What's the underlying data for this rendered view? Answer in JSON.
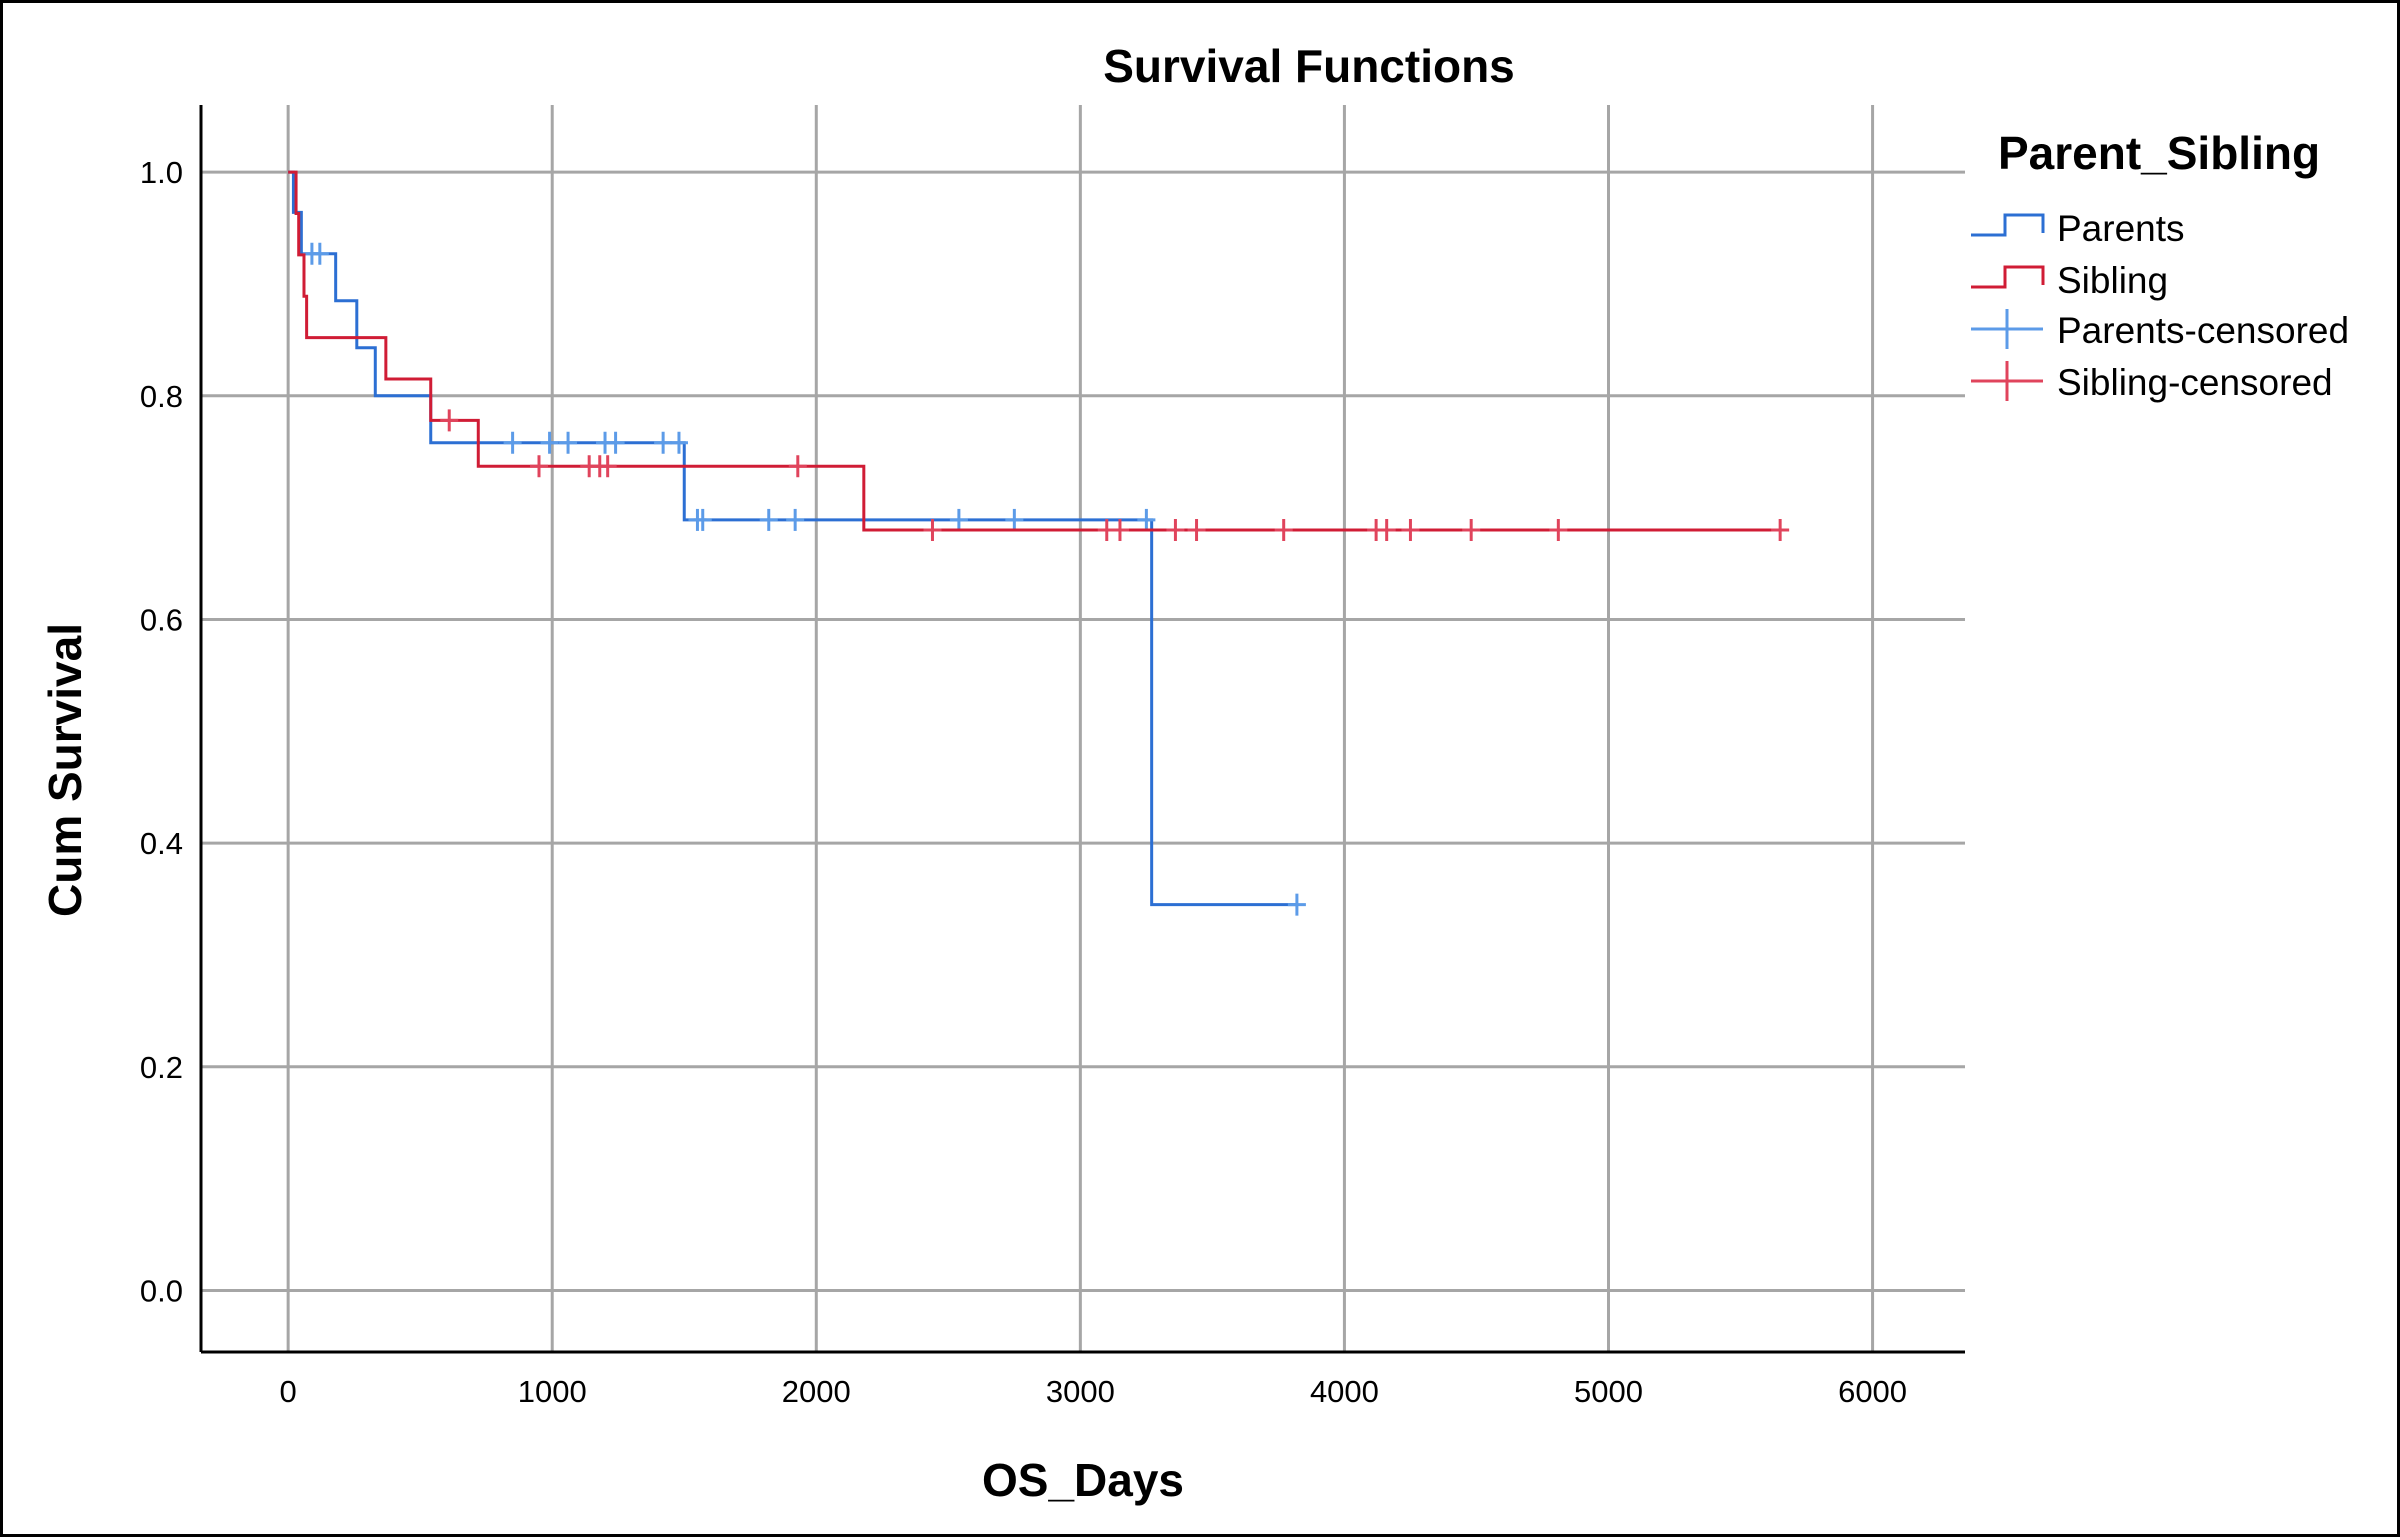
{
  "chart_data": {
    "type": "line",
    "title": "Survival Functions",
    "xlabel": "OS_Days",
    "ylabel": "Cum Survival",
    "xlim": [
      -330,
      6350
    ],
    "ylim": [
      -0.055,
      1.06
    ],
    "xticks": [
      0,
      1000,
      2000,
      3000,
      4000,
      5000,
      6000
    ],
    "yticks": [
      0.0,
      0.2,
      0.4,
      0.6,
      0.8,
      1.0
    ],
    "ytick_labels": [
      "0.0",
      "0.2",
      "0.4",
      "0.6",
      "0.8",
      "1.0"
    ],
    "grid": true,
    "legend_title": "Parent_Sibling",
    "legend_position": "right",
    "legend_entries": [
      "Parents",
      "Sibling",
      "Parents-censored",
      "Sibling-censored"
    ],
    "series": [
      {
        "name": "Parents",
        "color": "#2c6fd3",
        "steps": [
          [
            0,
            1.0
          ],
          [
            20,
            0.964
          ],
          [
            50,
            0.927
          ],
          [
            180,
            0.885
          ],
          [
            260,
            0.843
          ],
          [
            330,
            0.8
          ],
          [
            540,
            0.758
          ],
          [
            1500,
            0.689
          ],
          [
            3270,
            0.345
          ],
          [
            3820,
            0.345
          ]
        ],
        "censored": [
          [
            90,
            0.927
          ],
          [
            120,
            0.927
          ],
          [
            850,
            0.758
          ],
          [
            990,
            0.758
          ],
          [
            1060,
            0.758
          ],
          [
            1200,
            0.758
          ],
          [
            1240,
            0.758
          ],
          [
            1420,
            0.758
          ],
          [
            1480,
            0.758
          ],
          [
            1550,
            0.689
          ],
          [
            1570,
            0.689
          ],
          [
            1820,
            0.689
          ],
          [
            1920,
            0.689
          ],
          [
            2540,
            0.689
          ],
          [
            2750,
            0.689
          ],
          [
            3250,
            0.689
          ],
          [
            3820,
            0.345
          ]
        ]
      },
      {
        "name": "Sibling",
        "color": "#d01c35",
        "steps": [
          [
            0,
            1.0
          ],
          [
            30,
            0.963
          ],
          [
            40,
            0.926
          ],
          [
            60,
            0.889
          ],
          [
            70,
            0.852
          ],
          [
            370,
            0.815
          ],
          [
            540,
            0.778
          ],
          [
            720,
            0.737
          ],
          [
            2180,
            0.68
          ],
          [
            5650,
            0.68
          ]
        ],
        "censored": [
          [
            610,
            0.778
          ],
          [
            950,
            0.737
          ],
          [
            1140,
            0.737
          ],
          [
            1180,
            0.737
          ],
          [
            1210,
            0.737
          ],
          [
            1930,
            0.737
          ],
          [
            2440,
            0.68
          ],
          [
            3100,
            0.68
          ],
          [
            3150,
            0.68
          ],
          [
            3360,
            0.68
          ],
          [
            3440,
            0.68
          ],
          [
            3770,
            0.68
          ],
          [
            4120,
            0.68
          ],
          [
            4160,
            0.68
          ],
          [
            4250,
            0.68
          ],
          [
            4480,
            0.68
          ],
          [
            4810,
            0.68
          ],
          [
            5650,
            0.68
          ]
        ]
      }
    ]
  }
}
